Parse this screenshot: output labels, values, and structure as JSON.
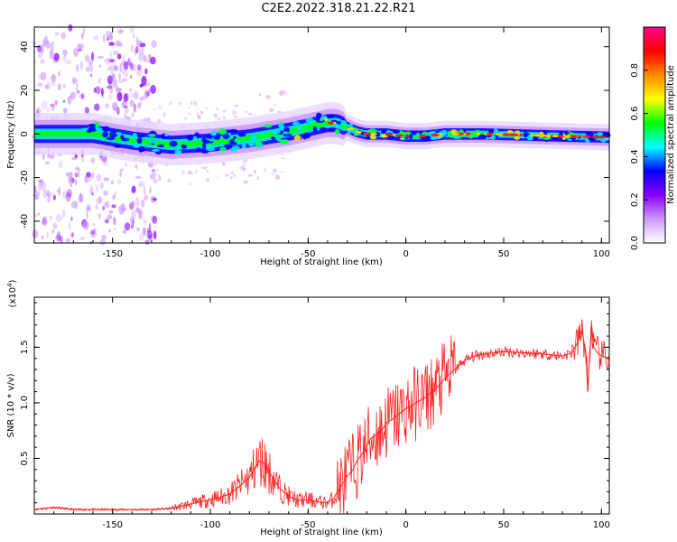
{
  "title": "C2E2.2022.318.21.22.R21",
  "chart_data": [
    {
      "type": "heatmap",
      "xlabel": "Height of straight line (km)",
      "ylabel": "Frequency (Hz)",
      "xlim": [
        -190,
        104
      ],
      "ylim": [
        -50,
        49
      ],
      "xticks": [
        -150,
        -100,
        -50,
        0,
        50,
        100
      ],
      "yticks": [
        -40,
        -20,
        0,
        20,
        40
      ],
      "xtick_labels": [
        "-150",
        "-100",
        "-50",
        "0",
        "50",
        "100"
      ],
      "ytick_labels": [
        "-40",
        "-20",
        "0",
        "20",
        "40"
      ],
      "ridge": {
        "x": [
          -190,
          -160,
          -140,
          -120,
          -100,
          -80,
          -60,
          -50,
          -40,
          -35,
          -30,
          -25,
          -20,
          -10,
          0,
          10,
          20,
          40,
          60,
          80,
          104
        ],
        "frequency": [
          0,
          0,
          -3,
          -5,
          -4,
          -2,
          1,
          3,
          5,
          5,
          3,
          1,
          0,
          0,
          -1,
          -1,
          0,
          0,
          -0.5,
          -1,
          -1.5
        ]
      },
      "colorbar": {
        "label": "Normalized spectral amplitude",
        "range": [
          0,
          1
        ],
        "ticks": [
          0.0,
          0.2,
          0.4,
          0.6,
          0.8
        ],
        "tick_labels": [
          "0.0",
          "0.2",
          "0.4",
          "0.6",
          "0.8"
        ],
        "colors": [
          "#ffffff",
          "#cc99ff",
          "#8800ff",
          "#0000ff",
          "#00ffff",
          "#00ff00",
          "#ffff00",
          "#ff8800",
          "#ff0000",
          "#ff0088"
        ]
      }
    },
    {
      "type": "line",
      "xlabel": "Height of straight line (km)",
      "ylabel": "SNR (10 * v/v)",
      "multiplier_label": "(x10",
      "multiplier_exp": "4",
      "multiplier_close": ")",
      "xlim": [
        -190,
        104
      ],
      "ylim": [
        0,
        1.95
      ],
      "xticks": [
        -150,
        -100,
        -50,
        0,
        50,
        100
      ],
      "xtick_labels": [
        "-150",
        "-100",
        "-50",
        "0",
        "50",
        "100"
      ],
      "yticks": [
        0.5,
        1.0,
        1.5
      ],
      "ytick_labels": [
        "0.5",
        "1.0",
        "1.5"
      ],
      "color": "#ff2020",
      "series": [
        {
          "x": [
            -190,
            -185,
            -180,
            -175,
            -170,
            -165,
            -160,
            -150,
            -140,
            -130,
            -120,
            -115,
            -110,
            -105,
            -100,
            -95,
            -90,
            -85,
            -80,
            -77,
            -75,
            -72,
            -70,
            -67,
            -65,
            -60,
            -55,
            -50,
            -45,
            -40,
            -37,
            -35,
            -32,
            -30,
            -27,
            -25,
            -22,
            -20,
            -18,
            -15,
            -12,
            -10,
            -7,
            -5,
            -2,
            0,
            3,
            5,
            8,
            10,
            12,
            15,
            18,
            20,
            25,
            30,
            35,
            40,
            50,
            60,
            70,
            75,
            80,
            85,
            88,
            90,
            92,
            93,
            94,
            95,
            96,
            98,
            100,
            104
          ],
          "y": [
            0.04,
            0.05,
            0.06,
            0.05,
            0.04,
            0.04,
            0.04,
            0.04,
            0.04,
            0.04,
            0.05,
            0.07,
            0.09,
            0.11,
            0.13,
            0.15,
            0.18,
            0.25,
            0.33,
            0.42,
            0.48,
            0.45,
            0.38,
            0.3,
            0.24,
            0.16,
            0.12,
            0.13,
            0.11,
            0.1,
            0.14,
            0.2,
            0.28,
            0.34,
            0.4,
            0.48,
            0.55,
            0.62,
            0.68,
            0.72,
            0.76,
            0.82,
            0.85,
            0.88,
            0.92,
            0.95,
            0.97,
            1.0,
            1.03,
            1.05,
            1.08,
            1.12,
            1.18,
            1.22,
            1.3,
            1.38,
            1.42,
            1.44,
            1.46,
            1.45,
            1.44,
            1.43,
            1.42,
            1.45,
            1.55,
            1.65,
            1.45,
            1.1,
            1.45,
            1.7,
            1.5,
            1.45,
            1.42,
            1.4
          ]
        }
      ]
    }
  ]
}
